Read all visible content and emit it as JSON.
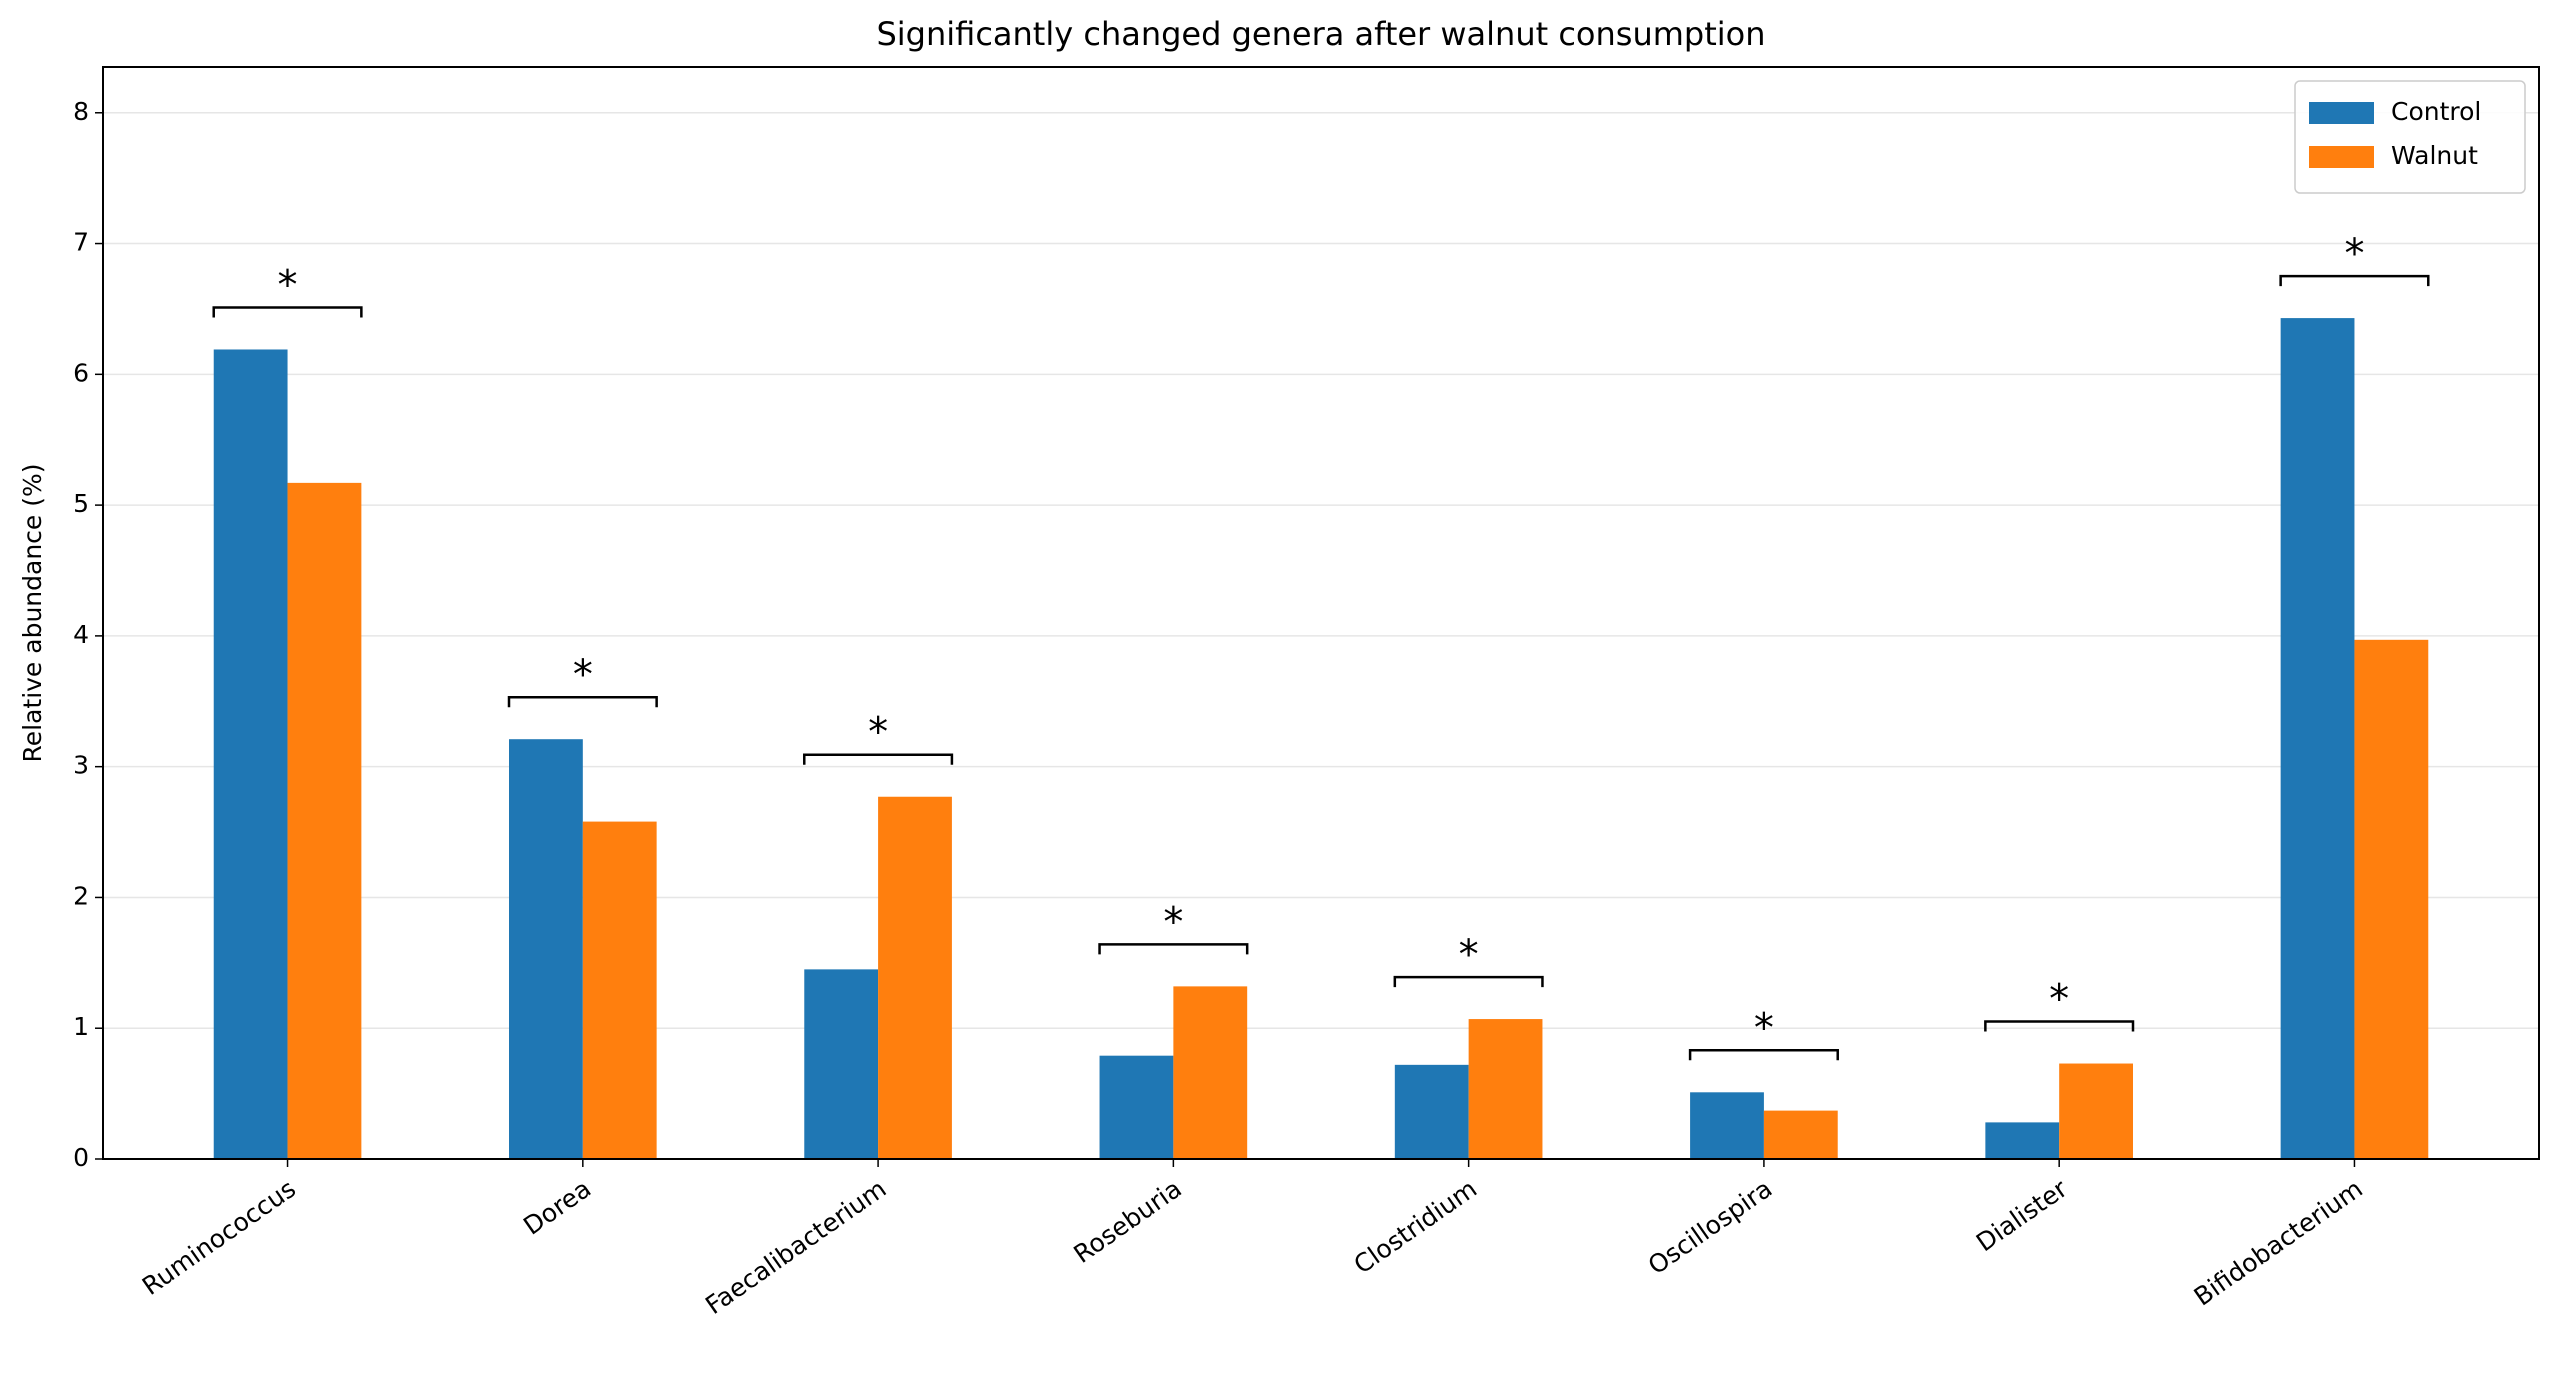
{
  "chart_data": {
    "type": "bar",
    "title": "Significantly changed genera after walnut consumption",
    "y_label": "Relative abundance (%)",
    "categories": [
      "Ruminococcus",
      "Dorea",
      "Faecalibacterium",
      "Roseburia",
      "Clostridium",
      "Oscillospira",
      "Dialister",
      "Bifidobacterium"
    ],
    "series": [
      {
        "name": "Control",
        "color": "#1f77b4",
        "values": [
          6.19,
          3.21,
          1.45,
          0.79,
          0.72,
          0.51,
          0.28,
          6.43
        ]
      },
      {
        "name": "Walnut",
        "color": "#ff7f0e",
        "values": [
          5.17,
          2.58,
          2.77,
          1.32,
          1.07,
          0.37,
          0.73,
          3.97
        ]
      }
    ],
    "annotations": [
      "*",
      "*",
      "*",
      "*",
      "*",
      "*",
      "*",
      "*"
    ],
    "ylim": [
      0,
      8.35
    ],
    "yticks": [
      0,
      1,
      2,
      3,
      4,
      5,
      6,
      7,
      8
    ],
    "grid": true,
    "legend": "upper right"
  }
}
